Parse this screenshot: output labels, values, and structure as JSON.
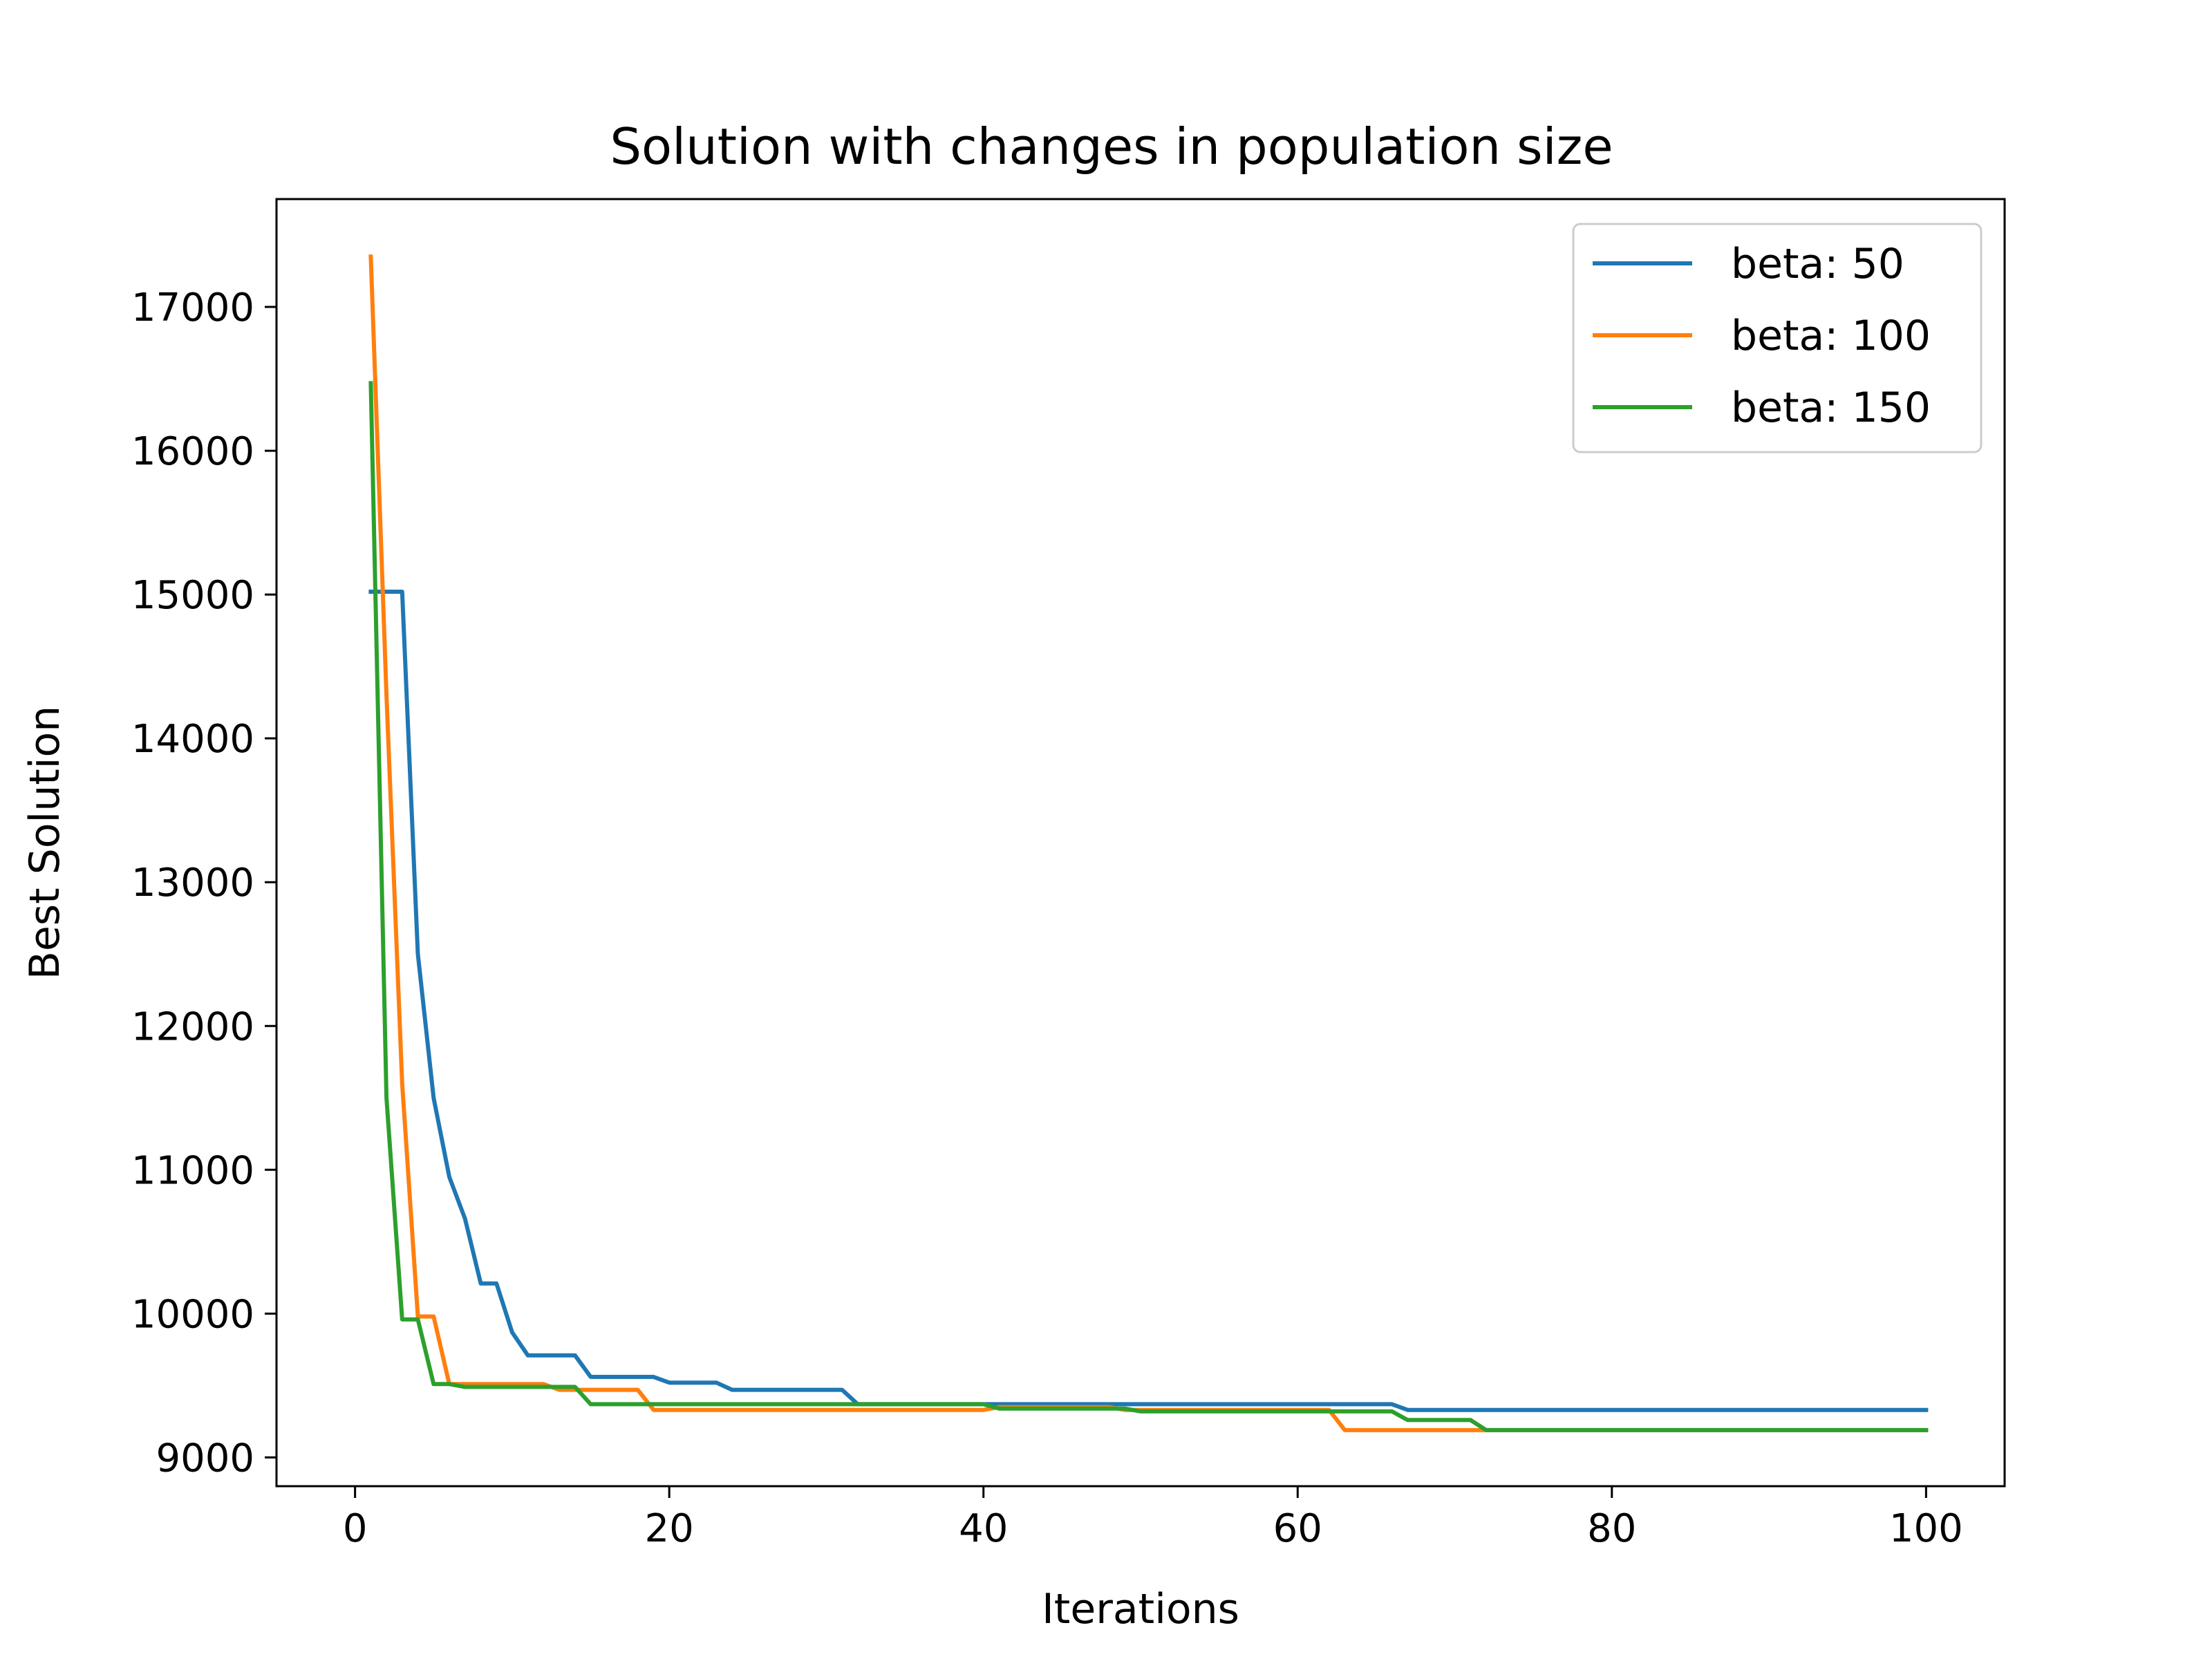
{
  "chart_data": {
    "type": "line",
    "title": "Solution with changes in population size",
    "xlabel": "Iterations",
    "ylabel": "Best Solution",
    "xlim": [
      -5,
      105
    ],
    "ylim": [
      8800,
      17750
    ],
    "xticks": [
      0,
      20,
      40,
      60,
      80,
      100
    ],
    "yticks": [
      9000,
      10000,
      11000,
      12000,
      13000,
      14000,
      15000,
      16000,
      17000
    ],
    "grid": false,
    "legend": "top-right",
    "series": [
      {
        "name": "beta: 50",
        "color": "#1f77b4",
        "points": [
          [
            1,
            15020
          ],
          [
            3,
            15020
          ],
          [
            4,
            12500
          ],
          [
            5,
            11500
          ],
          [
            6,
            10950
          ],
          [
            7,
            10660
          ],
          [
            8,
            10210
          ],
          [
            9,
            10210
          ],
          [
            10,
            9870
          ],
          [
            11,
            9710
          ],
          [
            14,
            9710
          ],
          [
            15,
            9560
          ],
          [
            19,
            9560
          ],
          [
            20,
            9520
          ],
          [
            23,
            9520
          ],
          [
            24,
            9470
          ],
          [
            31,
            9470
          ],
          [
            32,
            9370
          ],
          [
            66,
            9370
          ],
          [
            67,
            9330
          ],
          [
            100,
            9330
          ]
        ]
      },
      {
        "name": "beta: 100",
        "color": "#ff7f0e",
        "points": [
          [
            1,
            17350
          ],
          [
            2,
            14300
          ],
          [
            3,
            11600
          ],
          [
            4,
            9980
          ],
          [
            5,
            9980
          ],
          [
            6,
            9510
          ],
          [
            12,
            9510
          ],
          [
            13,
            9470
          ],
          [
            18,
            9470
          ],
          [
            19,
            9330
          ],
          [
            40,
            9330
          ],
          [
            41,
            9350
          ],
          [
            48,
            9350
          ],
          [
            49,
            9330
          ],
          [
            62,
            9330
          ],
          [
            63,
            9190
          ],
          [
            100,
            9190
          ]
        ]
      },
      {
        "name": "beta: 150",
        "color": "#2ca02c",
        "points": [
          [
            1,
            16470
          ],
          [
            2,
            11500
          ],
          [
            3,
            9960
          ],
          [
            4,
            9960
          ],
          [
            5,
            9510
          ],
          [
            6,
            9510
          ],
          [
            7,
            9490
          ],
          [
            14,
            9490
          ],
          [
            15,
            9370
          ],
          [
            40,
            9370
          ],
          [
            41,
            9340
          ],
          [
            49,
            9340
          ],
          [
            50,
            9320
          ],
          [
            66,
            9320
          ],
          [
            67,
            9260
          ],
          [
            71,
            9260
          ],
          [
            72,
            9190
          ],
          [
            100,
            9190
          ]
        ]
      }
    ]
  }
}
